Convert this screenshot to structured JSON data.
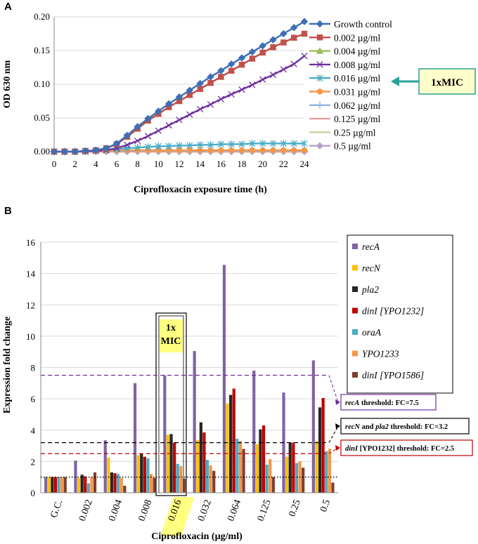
{
  "panels": {
    "a": "A",
    "b": "B"
  },
  "chart_data": [
    {
      "type": "line",
      "title": "",
      "xlabel": "Ciprofloxacin exposure time (h)",
      "ylabel": "OD 630 nm",
      "ylim": [
        0,
        0.2
      ],
      "xlim": [
        0,
        24
      ],
      "x_ticks": [
        "0",
        "2",
        "4",
        "6",
        "8",
        "10",
        "12",
        "14",
        "16",
        "18",
        "20",
        "22",
        "24"
      ],
      "y_ticks": [
        "0.00",
        "0.05",
        "0.10",
        "0.15",
        "0.20"
      ],
      "legend_position": "right",
      "x": [
        0,
        1,
        2,
        3,
        4,
        5,
        6,
        7,
        8,
        9,
        10,
        11,
        12,
        13,
        14,
        15,
        16,
        17,
        18,
        19,
        20,
        21,
        22,
        23,
        24
      ],
      "series": [
        {
          "name": "Growth control",
          "color": "#3e6fb5",
          "marker": "diamond",
          "values": [
            0,
            0,
            0,
            0.001,
            0.002,
            0.005,
            0.012,
            0.024,
            0.037,
            0.049,
            0.06,
            0.071,
            0.081,
            0.091,
            0.101,
            0.111,
            0.12,
            0.13,
            0.139,
            0.148,
            0.157,
            0.166,
            0.175,
            0.184,
            0.193
          ]
        },
        {
          "name": "0.002 µg/ml",
          "color": "#c0504d",
          "marker": "square",
          "values": [
            0,
            0,
            0,
            0.001,
            0.002,
            0.005,
            0.011,
            0.022,
            0.034,
            0.046,
            0.056,
            0.066,
            0.075,
            0.084,
            0.093,
            0.102,
            0.111,
            0.12,
            0.129,
            0.138,
            0.147,
            0.155,
            0.162,
            0.169,
            0.175
          ]
        },
        {
          "name": "0.004 µg/ml",
          "color": "#9bbb59",
          "marker": "triangle",
          "values": [
            0,
            0,
            0,
            0.001,
            0.002,
            0.005,
            0.011,
            0.022,
            0.034,
            0.046,
            0.056,
            0.066,
            0.075,
            0.084,
            0.093,
            0.102,
            0.111,
            0.12,
            0.129,
            0.138,
            0.147,
            0.155,
            0.162,
            0.169,
            0.175
          ]
        },
        {
          "name": "0.008 µg/ml",
          "color": "#7030a0",
          "marker": "x",
          "values": [
            0,
            0,
            0,
            0,
            0.001,
            0.002,
            0.005,
            0.01,
            0.016,
            0.023,
            0.031,
            0.039,
            0.047,
            0.055,
            0.063,
            0.07,
            0.078,
            0.085,
            0.092,
            0.099,
            0.107,
            0.114,
            0.122,
            0.13,
            0.142
          ]
        },
        {
          "name": "0.016 µg/ml",
          "color": "#4bacc6",
          "marker": "star",
          "values": [
            0,
            0,
            0,
            0.001,
            0.002,
            0.003,
            0.004,
            0.005,
            0.006,
            0.007,
            0.008,
            0.008,
            0.009,
            0.009,
            0.01,
            0.01,
            0.011,
            0.011,
            0.011,
            0.012,
            0.012,
            0.012,
            0.012,
            0.012,
            0.012
          ]
        },
        {
          "name": "0.031 µg/ml",
          "color": "#f79646",
          "marker": "circle",
          "values": [
            0,
            0,
            0,
            0,
            0.001,
            0.001,
            0.002,
            0.002,
            0.002,
            0.002,
            0.002,
            0.002,
            0.002,
            0.002,
            0.002,
            0.002,
            0.002,
            0.002,
            0.002,
            0.002,
            0.002,
            0.002,
            0.002,
            0.002,
            0.002
          ]
        },
        {
          "name": "0.062 µg/ml",
          "color": "#8eb4e3",
          "marker": "plus",
          "values": [
            0,
            0,
            0,
            0,
            0.001,
            0.001,
            0.001,
            0.001,
            0.001,
            0.001,
            0.001,
            0.001,
            0.001,
            0.001,
            0.001,
            0.001,
            0.001,
            0.001,
            0.001,
            0.001,
            0.001,
            0.001,
            0.001,
            0.001,
            0.001
          ]
        },
        {
          "name": "0.125 µg/ml",
          "color": "#e6a09e",
          "marker": "dash",
          "values": [
            0,
            0,
            0,
            0,
            0,
            0,
            0,
            0,
            0,
            0,
            0,
            0,
            0,
            0,
            0,
            0,
            0,
            0,
            0,
            0,
            0,
            0,
            0,
            0,
            0
          ]
        },
        {
          "name": "0.25 µg/ml",
          "color": "#c3d69b",
          "marker": "dash",
          "values": [
            0,
            0,
            0,
            0,
            0,
            0,
            0,
            0,
            0,
            0,
            0,
            0,
            0,
            0,
            0,
            0,
            0,
            0,
            0,
            0,
            0,
            0,
            0,
            0,
            0
          ]
        },
        {
          "name": "0.5 µg/ml",
          "color": "#b3a2c7",
          "marker": "diamond",
          "values": [
            0,
            0,
            0,
            0,
            0,
            0,
            0,
            0,
            0,
            0,
            0,
            0,
            0,
            0,
            0,
            0,
            0,
            0,
            0,
            0,
            0,
            0,
            0,
            0,
            0
          ]
        }
      ],
      "annotations": [
        {
          "text": "1xMIC",
          "target_series": "0.016 µg/ml"
        }
      ]
    },
    {
      "type": "bar",
      "title": "",
      "xlabel": "Ciprofloxacin (µg/ml)",
      "ylabel": "Expression fold change",
      "ylim": [
        0,
        16
      ],
      "y_ticks": [
        "0",
        "2",
        "4",
        "6",
        "8",
        "10",
        "12",
        "14",
        "16"
      ],
      "categories": [
        "G.C.",
        "0.002",
        "0.004",
        "0.008",
        "0.016",
        "0.032",
        "0.064",
        "0.125",
        "0.25",
        "0.5"
      ],
      "highlight_category": "0.016",
      "legend_position": "right",
      "series": [
        {
          "name": "recA",
          "color": "#8064a2",
          "values": [
            1,
            2.05,
            3.35,
            7,
            7.5,
            9.05,
            14.55,
            7.8,
            6.4,
            8.45
          ]
        },
        {
          "name": "recN",
          "color": "#ffc000",
          "values": [
            1,
            0.95,
            2.25,
            2.4,
            3.7,
            3.35,
            5.7,
            3.1,
            2.3,
            3.3
          ]
        },
        {
          "name": "pla2",
          "color": "#262626",
          "values": [
            1,
            1.15,
            1.3,
            2.5,
            3.75,
            4.5,
            6.25,
            4.05,
            3.2,
            5.45
          ]
        },
        {
          "name": "dinI [YPO1232]",
          "color": "#c00000",
          "values": [
            1,
            1.05,
            1.25,
            2.3,
            3.2,
            3.85,
            6.65,
            4.3,
            3.2,
            6.05
          ]
        },
        {
          "name": "oraA",
          "color": "#4bacc6",
          "values": [
            1,
            0.6,
            1.2,
            2.2,
            1.85,
            2.1,
            3.45,
            1.8,
            1.9,
            2.65
          ]
        },
        {
          "name": "YPO1233",
          "color": "#f79646",
          "values": [
            1,
            1.0,
            0.95,
            1.2,
            1.7,
            1.75,
            3.3,
            2.15,
            2.0,
            2.8
          ]
        },
        {
          "name": "dinI [YPO1586]",
          "color": "#7f3f2f",
          "values": [
            1,
            1.3,
            0.45,
            0.95,
            0.9,
            1.4,
            2.8,
            1.0,
            1.6,
            0.65
          ]
        }
      ],
      "annotations": [
        {
          "text": "1x MIC",
          "category": "0.016"
        }
      ],
      "thresholds": [
        {
          "gene": "recA",
          "value": 7.5,
          "color": "#7030a0",
          "label_gene": "recA",
          "label_rest": " threshold: FC=7.5"
        },
        {
          "gene": "recN and pla2",
          "value": 3.2,
          "color": "#000000",
          "label_gene": "recN",
          "label_mid": " and ",
          "label_gene2": "pla2",
          "label_rest": " threshold: FC=3.2"
        },
        {
          "gene": "dinI [YPO1232]",
          "value": 2.5,
          "color": "#c00000",
          "label_gene": "dinI",
          "label_rest": " [YPO1232] threshold: FC=2.5"
        }
      ],
      "baseline": 1
    }
  ]
}
